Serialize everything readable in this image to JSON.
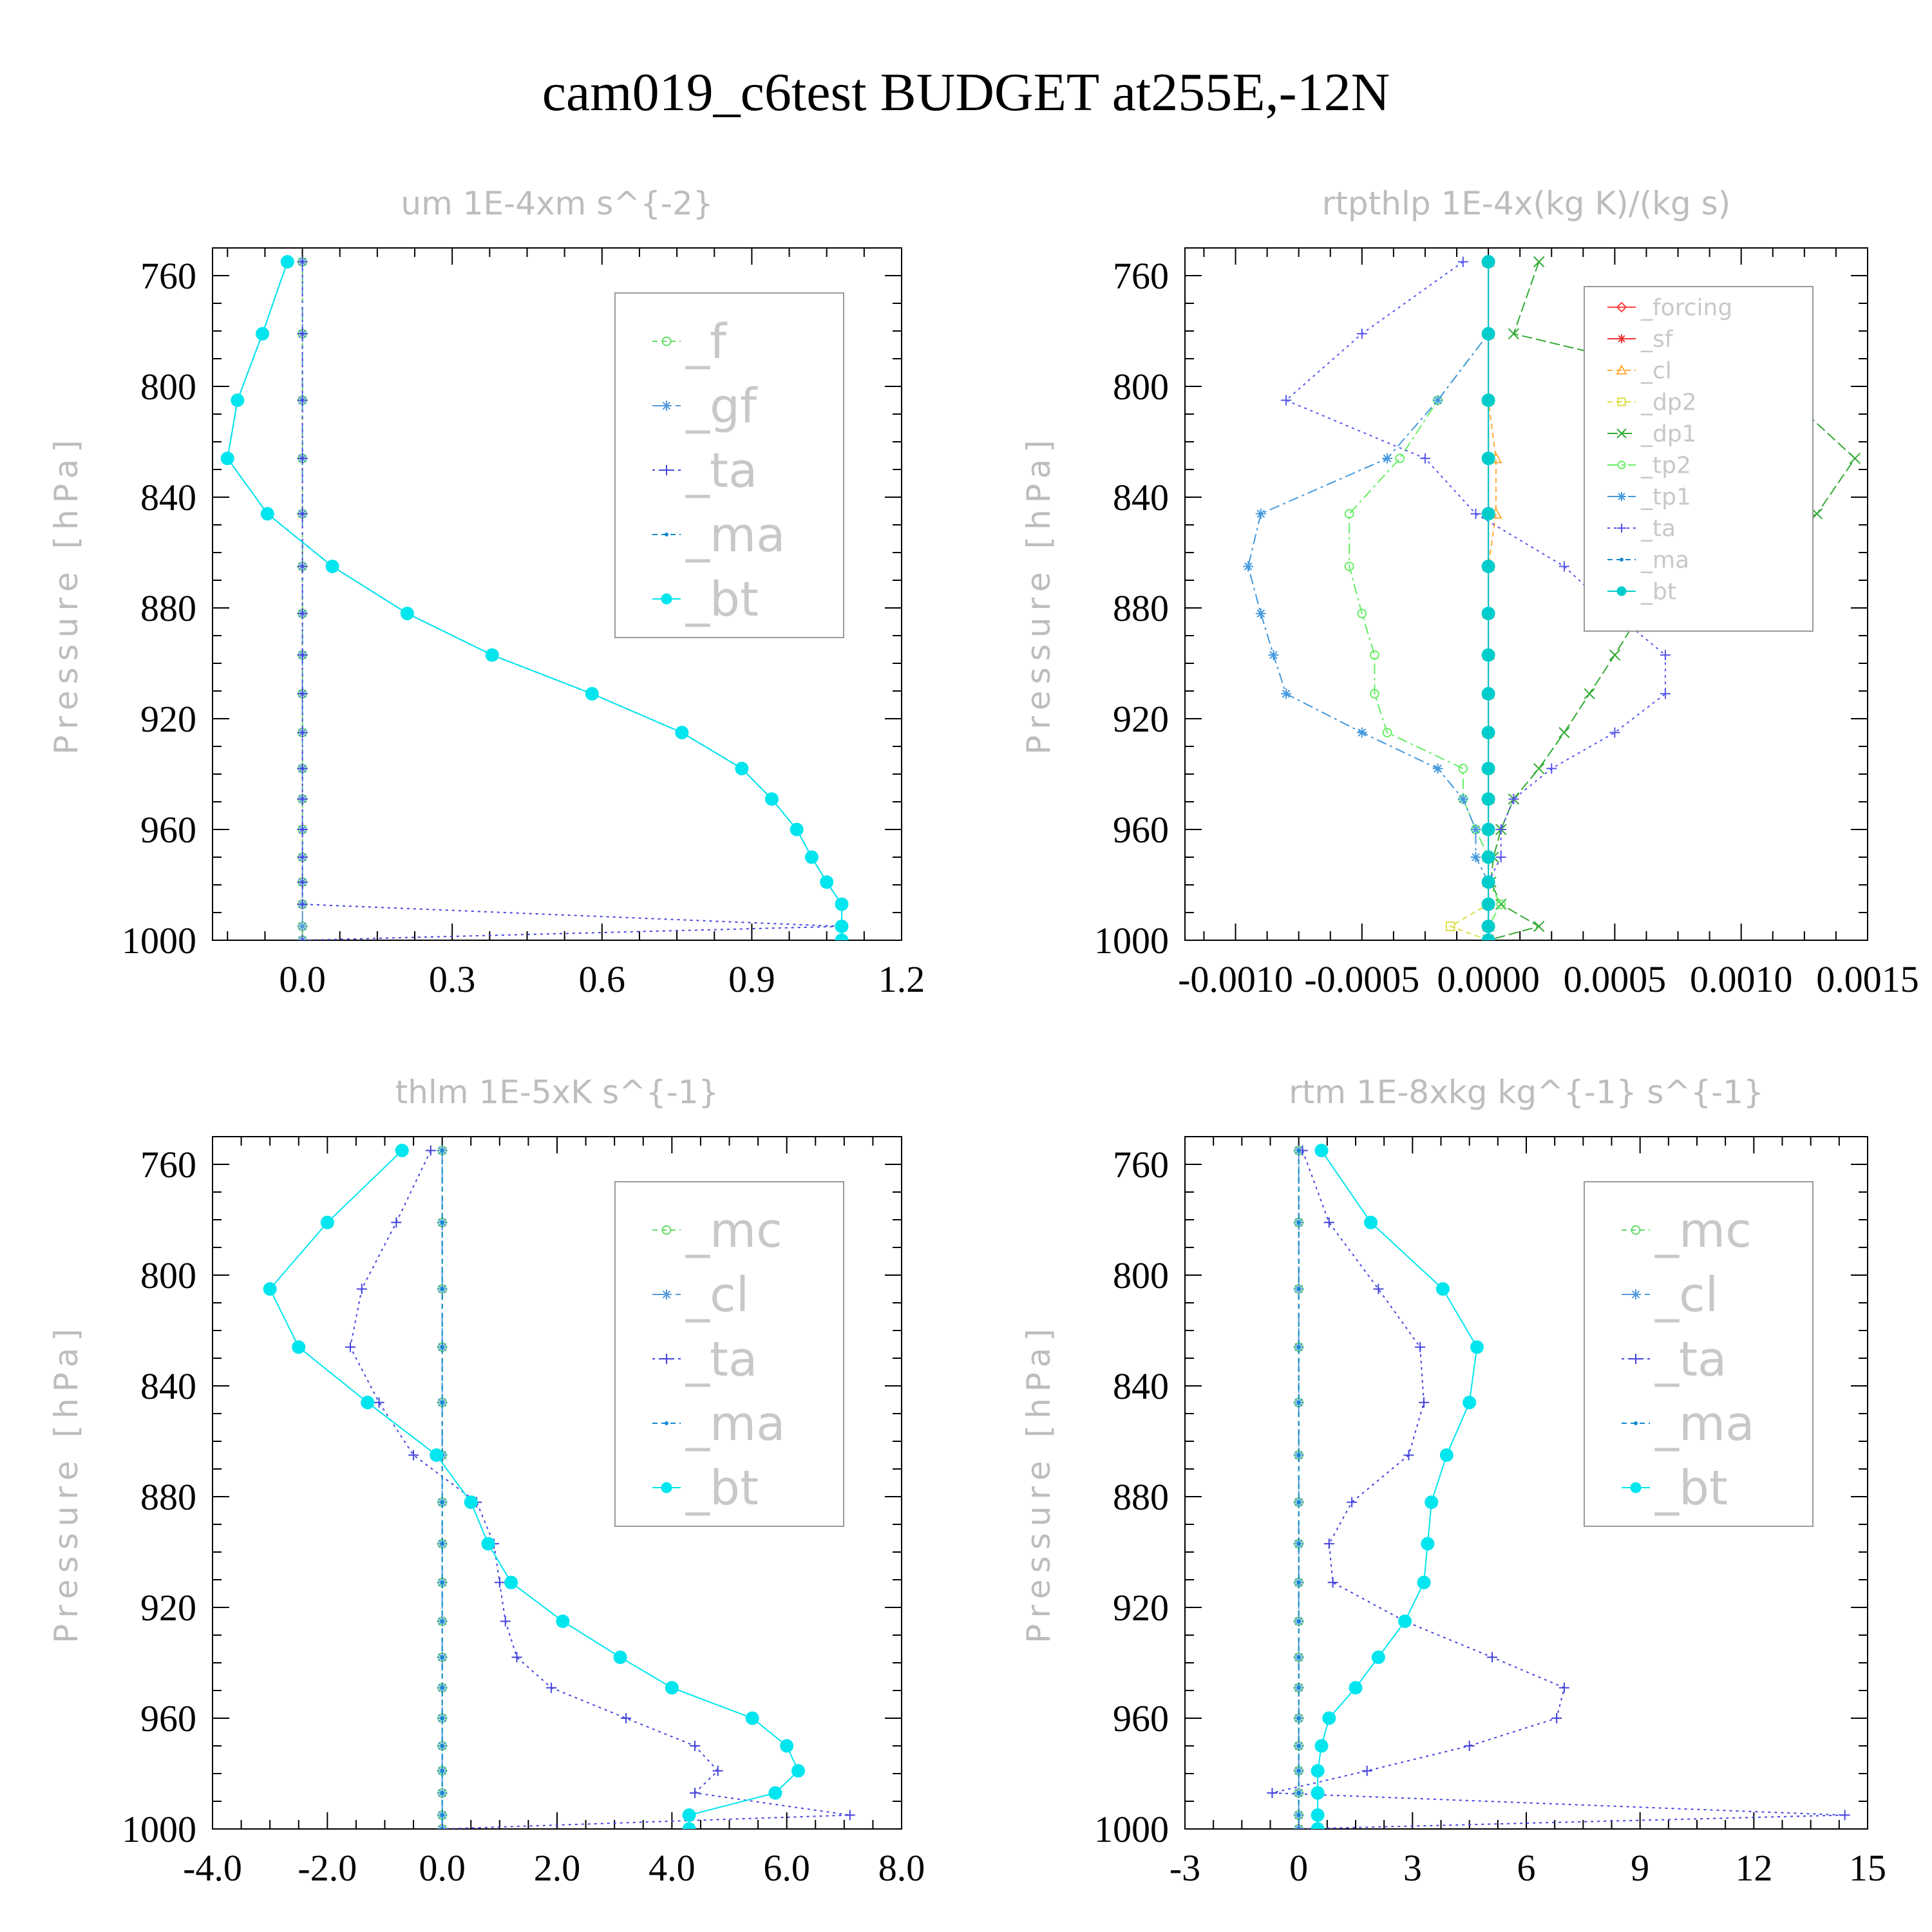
{
  "title": "cam019_c6test  BUDGET at255E,-12N",
  "chart_data": [
    {
      "type": "line",
      "panel_title": "um   1E-4xm s^{-2}",
      "ylabel": "Pressure [hPa]",
      "ylim": [
        1000,
        750
      ],
      "xlim": [
        -0.18,
        1.2
      ],
      "yticks": [
        760,
        800,
        840,
        880,
        920,
        960,
        1000
      ],
      "xticks": [
        0.0,
        0.3,
        0.6,
        0.9,
        1.2
      ],
      "xtick_labels": [
        "0.0",
        "0.3",
        "0.6",
        "0.9",
        "1.2"
      ],
      "legend": {
        "placement": "top-right",
        "size": "large"
      },
      "y": [
        755,
        781,
        805,
        826,
        846,
        865,
        882,
        897,
        911,
        925,
        938,
        949,
        960,
        970,
        979,
        987,
        995,
        1000
      ],
      "series": [
        {
          "name": "_f",
          "color": "#66dd66",
          "marker": "circle-open",
          "dash": "8,6",
          "values": [
            0,
            0,
            0,
            0,
            0,
            0,
            0,
            0,
            0,
            0,
            0,
            0,
            0,
            0,
            0,
            0,
            0,
            0
          ]
        },
        {
          "name": "_gf",
          "color": "#5599dd",
          "marker": "star",
          "dash": "16,8,4,8",
          "values": [
            0,
            0,
            0,
            0,
            0,
            0,
            0,
            0,
            0,
            0,
            0,
            0,
            0,
            0,
            0,
            0,
            0,
            0
          ]
        },
        {
          "name": "_ta",
          "color": "#4444dd",
          "marker": "plus",
          "dash": "4,6",
          "values": [
            0,
            0,
            0,
            0,
            0,
            0,
            0,
            0,
            0,
            0,
            0,
            0,
            0,
            0,
            0,
            0,
            1.08,
            0
          ]
        },
        {
          "name": "_ma",
          "color": "#1188cc",
          "marker": "dot",
          "dash": "8,6",
          "values": [
            -0.03,
            -0.08,
            -0.13,
            -0.15,
            -0.07,
            0.06,
            0.21,
            0.38,
            0.58,
            0.76,
            0.88,
            0.94,
            0.99,
            1.02,
            1.05,
            1.08,
            1.08,
            1.08
          ]
        },
        {
          "name": "_bt",
          "color": "#00e5ee",
          "marker": "filled",
          "dash": "",
          "values": [
            -0.03,
            -0.08,
            -0.13,
            -0.15,
            -0.07,
            0.06,
            0.21,
            0.38,
            0.58,
            0.76,
            0.88,
            0.94,
            0.99,
            1.02,
            1.05,
            1.08,
            1.08,
            1.08
          ]
        }
      ]
    },
    {
      "type": "line",
      "panel_title": "rtpthlp   1E-4x(kg K)/(kg s)",
      "ylabel": "Pressure [hPa]",
      "ylim": [
        1000,
        750
      ],
      "xlim": [
        -0.0012,
        0.0015
      ],
      "yticks": [
        760,
        800,
        840,
        880,
        920,
        960,
        1000
      ],
      "xticks": [
        -0.001,
        -0.0005,
        0.0,
        0.0005,
        0.001,
        0.0015
      ],
      "xtick_labels": [
        "-0.0010",
        "-0.0005",
        "0.0000",
        "0.0005",
        "0.0010",
        "0.0015"
      ],
      "legend": {
        "placement": "top-right",
        "size": "small"
      },
      "y": [
        755,
        781,
        805,
        826,
        846,
        865,
        882,
        897,
        911,
        925,
        938,
        949,
        960,
        970,
        979,
        987,
        995,
        1000
      ],
      "series": [
        {
          "name": "_forcing",
          "color": "#ff4444",
          "marker": "diamond",
          "dash": "",
          "values": [
            0,
            0,
            0,
            0,
            0,
            0,
            0,
            0,
            0,
            0,
            0,
            0,
            0,
            0,
            0,
            0,
            0,
            0
          ]
        },
        {
          "name": "_sf",
          "color": "#ee3333",
          "marker": "star",
          "dash": "",
          "values": [
            0,
            0,
            0,
            0,
            0,
            0,
            0,
            0,
            0,
            0,
            0,
            0,
            0,
            0,
            0,
            0,
            0,
            0
          ]
        },
        {
          "name": "_cl",
          "color": "#ffaa33",
          "marker": "triangle",
          "dash": "8,6",
          "values": [
            0,
            0,
            0,
            3e-05,
            3e-05,
            0,
            0,
            0,
            0,
            0,
            0,
            0,
            0,
            0,
            0,
            0,
            0,
            0
          ]
        },
        {
          "name": "_dp2",
          "color": "#dddd44",
          "marker": "square",
          "dash": "8,6",
          "values": [
            0,
            0,
            0,
            0,
            0,
            0,
            0,
            0,
            0,
            0,
            0,
            0,
            0,
            0,
            0,
            0,
            -0.00015,
            0
          ]
        },
        {
          "name": "_dp1",
          "color": "#33aa33",
          "marker": "x",
          "dash": "16,6",
          "values": [
            0.0002,
            0.0001,
            0.0012,
            0.00145,
            0.0013,
            0.0009,
            0.0006,
            0.0005,
            0.0004,
            0.0003,
            0.0002,
            0.0001,
            5e-05,
            2e-05,
            1e-05,
            5e-05,
            0.0002,
            0
          ]
        },
        {
          "name": "_tp2",
          "color": "#66ee66",
          "marker": "circle-open",
          "dash": "16,6,4,6",
          "values": [
            0,
            0,
            -0.0002,
            -0.00035,
            -0.00055,
            -0.00055,
            -0.0005,
            -0.00045,
            -0.00045,
            -0.0004,
            -0.0001,
            -0.0001,
            -5e-05,
            0,
            0,
            5e-05,
            0,
            0
          ]
        },
        {
          "name": "_tp1",
          "color": "#4499dd",
          "marker": "star",
          "dash": "16,6,4,6",
          "values": [
            0,
            0,
            -0.0002,
            -0.0004,
            -0.0009,
            -0.00095,
            -0.0009,
            -0.00085,
            -0.0008,
            -0.0005,
            -0.0002,
            -0.0001,
            -5e-05,
            -5e-05,
            0,
            0,
            0,
            0
          ]
        },
        {
          "name": "_ta",
          "color": "#5555ee",
          "marker": "plus",
          "dash": "4,6",
          "values": [
            -0.0001,
            -0.0005,
            -0.0008,
            -0.00025,
            -5e-05,
            0.0003,
            0.0005,
            0.0007,
            0.0007,
            0.0005,
            0.00025,
            0.0001,
            5e-05,
            5e-05,
            0,
            0,
            0,
            0
          ]
        },
        {
          "name": "_ma",
          "color": "#1188cc",
          "marker": "dot",
          "dash": "8,6",
          "values": [
            0,
            0,
            0,
            0,
            0,
            0,
            0,
            0,
            0,
            0,
            0,
            0,
            0,
            0,
            0,
            0,
            0,
            0
          ]
        },
        {
          "name": "_bt",
          "color": "#00cccc",
          "marker": "filled",
          "dash": "",
          "values": [
            0,
            0,
            0,
            0,
            0,
            0,
            0,
            0,
            0,
            0,
            0,
            0,
            0,
            0,
            0,
            0,
            0,
            0
          ]
        }
      ]
    },
    {
      "type": "line",
      "panel_title": "thlm   1E-5xK s^{-1}",
      "ylabel": "Pressure [hPa]",
      "ylim": [
        1000,
        750
      ],
      "xlim": [
        -4.0,
        8.0
      ],
      "yticks": [
        760,
        800,
        840,
        880,
        920,
        960,
        1000
      ],
      "xticks": [
        -4.0,
        -2.0,
        0.0,
        2.0,
        4.0,
        6.0,
        8.0
      ],
      "xtick_labels": [
        "-4.0",
        "-2.0",
        "0.0",
        "2.0",
        "4.0",
        "6.0",
        "8.0"
      ],
      "legend": {
        "placement": "top-right",
        "size": "large"
      },
      "y": [
        755,
        781,
        805,
        826,
        846,
        865,
        882,
        897,
        911,
        925,
        938,
        949,
        960,
        970,
        979,
        987,
        995,
        1000
      ],
      "series": [
        {
          "name": "_mc",
          "color": "#66dd66",
          "marker": "circle-open",
          "dash": "8,6",
          "values": [
            0,
            0,
            0,
            0,
            0,
            0,
            0,
            0,
            0,
            0,
            0,
            0,
            0,
            0,
            0,
            0,
            0,
            0
          ]
        },
        {
          "name": "_cl",
          "color": "#5599dd",
          "marker": "star",
          "dash": "16,8,4,8",
          "values": [
            0,
            0,
            0,
            0,
            0,
            0,
            0,
            0,
            0,
            0,
            0,
            0,
            0,
            0,
            0,
            0,
            0,
            0
          ]
        },
        {
          "name": "_ta",
          "color": "#4444dd",
          "marker": "plus",
          "dash": "4,6",
          "values": [
            -0.2,
            -0.8,
            -1.4,
            -1.6,
            -1.1,
            -0.5,
            0.6,
            0.9,
            1.0,
            1.1,
            1.3,
            1.9,
            3.2,
            4.4,
            4.8,
            4.4,
            7.1,
            0
          ]
        },
        {
          "name": "_ma",
          "color": "#1188cc",
          "marker": "dot",
          "dash": "8,6",
          "values": [
            0,
            0,
            0,
            0,
            0,
            0,
            0,
            0,
            0,
            0,
            0,
            0,
            0,
            0,
            0,
            0,
            0,
            0
          ]
        },
        {
          "name": "_bt",
          "color": "#00e5ee",
          "marker": "filled",
          "dash": "",
          "values": [
            -0.7,
            -2.0,
            -3.0,
            -2.5,
            -1.3,
            -0.1,
            0.5,
            0.8,
            1.2,
            2.1,
            3.1,
            4.0,
            5.4,
            6.0,
            6.2,
            5.8,
            4.3,
            4.3
          ]
        }
      ]
    },
    {
      "type": "line",
      "panel_title": "rtm   1E-8xkg kg^{-1} s^{-1}",
      "ylabel": "Pressure [hPa]",
      "ylim": [
        1000,
        750
      ],
      "xlim": [
        -3,
        15
      ],
      "yticks": [
        760,
        800,
        840,
        880,
        920,
        960,
        1000
      ],
      "xticks": [
        -3,
        0,
        3,
        6,
        9,
        12,
        15
      ],
      "xtick_labels": [
        "-3",
        "0",
        "3",
        "6",
        "9",
        "12",
        "15"
      ],
      "legend": {
        "placement": "top-right",
        "size": "large"
      },
      "y": [
        755,
        781,
        805,
        826,
        846,
        865,
        882,
        897,
        911,
        925,
        938,
        949,
        960,
        970,
        979,
        987,
        995,
        1000
      ],
      "series": [
        {
          "name": "_mc",
          "color": "#66dd66",
          "marker": "circle-open",
          "dash": "8,6",
          "values": [
            0,
            0,
            0,
            0,
            0,
            0,
            0,
            0,
            0,
            0,
            0,
            0,
            0,
            0,
            0,
            0,
            0,
            0
          ]
        },
        {
          "name": "_cl",
          "color": "#5599dd",
          "marker": "star",
          "dash": "16,8,4,8",
          "values": [
            0,
            0,
            0,
            0,
            0,
            0,
            0,
            0,
            0,
            0,
            0,
            0,
            0,
            0,
            0,
            0,
            0,
            0
          ]
        },
        {
          "name": "_ta",
          "color": "#4444dd",
          "marker": "plus",
          "dash": "4,6",
          "values": [
            0.1,
            0.8,
            2.1,
            3.2,
            3.3,
            2.9,
            1.4,
            0.8,
            0.9,
            2.8,
            5.1,
            7.0,
            6.8,
            4.5,
            1.8,
            -0.7,
            14.4,
            0
          ]
        },
        {
          "name": "_ma",
          "color": "#1188cc",
          "marker": "dot",
          "dash": "8,6",
          "values": [
            0,
            0,
            0,
            0,
            0,
            0,
            0,
            0,
            0,
            0,
            0,
            0,
            0,
            0,
            0,
            0,
            0,
            0
          ]
        },
        {
          "name": "_bt",
          "color": "#00e5ee",
          "marker": "filled",
          "dash": "",
          "values": [
            0.6,
            1.9,
            3.8,
            4.7,
            4.5,
            3.9,
            3.5,
            3.4,
            3.3,
            2.8,
            2.1,
            1.5,
            0.8,
            0.6,
            0.5,
            0.5,
            0.5,
            0.5
          ]
        }
      ]
    }
  ]
}
